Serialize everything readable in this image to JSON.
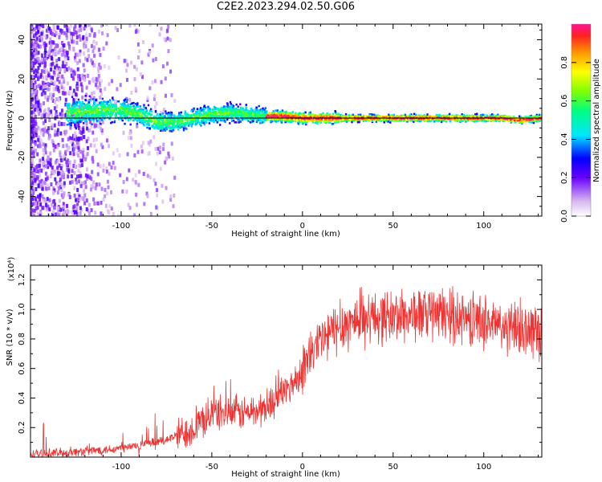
{
  "title": "C2E2.2023.294.02.50.G06",
  "chart_data": [
    {
      "type": "heatmap",
      "title": "",
      "xlabel": "Height of straight line (km)",
      "ylabel": "Frequency (Hz)",
      "xlim": [
        -150,
        132
      ],
      "ylim": [
        -50,
        48
      ],
      "x_ticks": [
        -100,
        -50,
        0,
        50,
        100
      ],
      "y_ticks": [
        -40,
        -20,
        0,
        20,
        40
      ],
      "ridge": [
        [
          -150,
          0
        ],
        [
          -125,
          3
        ],
        [
          -110,
          4
        ],
        [
          -100,
          4
        ],
        [
          -90,
          2
        ],
        [
          -80,
          -2
        ],
        [
          -70,
          -2
        ],
        [
          -60,
          0
        ],
        [
          -50,
          2
        ],
        [
          -40,
          3
        ],
        [
          -30,
          2
        ],
        [
          -20,
          1
        ],
        [
          -10,
          1
        ],
        [
          0,
          0
        ],
        [
          20,
          0
        ],
        [
          40,
          0
        ],
        [
          60,
          0
        ],
        [
          80,
          0
        ],
        [
          100,
          0
        ],
        [
          110,
          0
        ],
        [
          120,
          -1
        ],
        [
          132,
          0
        ]
      ],
      "colorbar": {
        "label": "Normalized spectral amplitude",
        "range": [
          0,
          1
        ],
        "ticks": [
          0.0,
          0.2,
          0.4,
          0.6,
          0.8
        ]
      }
    },
    {
      "type": "line",
      "title": "",
      "xlabel": "Height of straight line (km)",
      "ylabel": "SNR (10 * v/v)",
      "y_multiplier": "(x10⁴)",
      "xlim": [
        -150,
        132
      ],
      "ylim": [
        0,
        1.3
      ],
      "x_ticks": [
        -100,
        -50,
        0,
        50,
        100
      ],
      "y_ticks": [
        0.2,
        0.4,
        0.6,
        0.8,
        1.0,
        1.2
      ],
      "line_color": "#ee3333",
      "envelope": [
        [
          -150,
          0.02
        ],
        [
          -130,
          0.03
        ],
        [
          -120,
          0.04
        ],
        [
          -100,
          0.06
        ],
        [
          -90,
          0.08
        ],
        [
          -80,
          0.1
        ],
        [
          -70,
          0.14
        ],
        [
          -60,
          0.2
        ],
        [
          -55,
          0.24
        ],
        [
          -50,
          0.3
        ],
        [
          -40,
          0.3
        ],
        [
          -30,
          0.3
        ],
        [
          -20,
          0.33
        ],
        [
          -15,
          0.4
        ],
        [
          -10,
          0.45
        ],
        [
          -5,
          0.5
        ],
        [
          0,
          0.6
        ],
        [
          5,
          0.7
        ],
        [
          10,
          0.78
        ],
        [
          20,
          0.88
        ],
        [
          30,
          0.93
        ],
        [
          40,
          0.95
        ],
        [
          50,
          0.95
        ],
        [
          60,
          0.96
        ],
        [
          70,
          0.97
        ],
        [
          80,
          0.96
        ],
        [
          90,
          0.94
        ],
        [
          100,
          0.92
        ],
        [
          110,
          0.88
        ],
        [
          120,
          0.86
        ],
        [
          132,
          0.85
        ]
      ]
    }
  ]
}
